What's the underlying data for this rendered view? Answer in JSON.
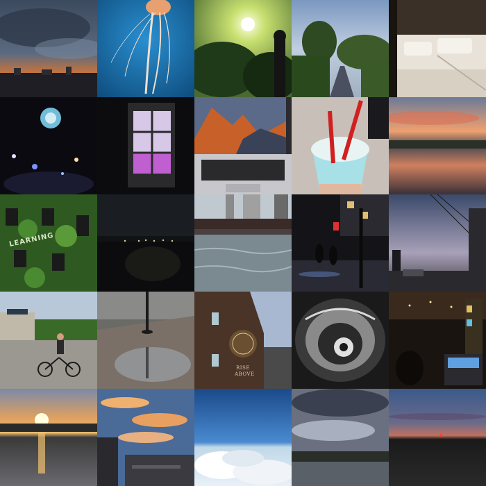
{
  "grid": {
    "columns": 5,
    "rows": 5
  },
  "tiles": [
    {
      "subject": "storm-sunset-city"
    },
    {
      "subject": "jellyfish"
    },
    {
      "subject": "sun-through-trees"
    },
    {
      "subject": "tree-lined-path"
    },
    {
      "subject": "hotel-beds"
    },
    {
      "subject": "glowing-balloon-night"
    },
    {
      "subject": "lit-window-night"
    },
    {
      "subject": "laptop-mountain-wallpaper"
    },
    {
      "subject": "blue-slush-drink"
    },
    {
      "subject": "river-sunset"
    },
    {
      "subject": "ivy-covered-building"
    },
    {
      "subject": "night-city-skyline"
    },
    {
      "subject": "river-bridge-skyline"
    },
    {
      "subject": "rainy-night-street"
    },
    {
      "subject": "dusk-street-wires"
    },
    {
      "subject": "cyclist-plaza"
    },
    {
      "subject": "puddle-reflection"
    },
    {
      "subject": "building-mural"
    },
    {
      "subject": "bean-sculpture-reflection"
    },
    {
      "subject": "arcade-interior"
    },
    {
      "subject": "sunset-over-water"
    },
    {
      "subject": "sunset-clouds-buildings"
    },
    {
      "subject": "clouds-from-airplane"
    },
    {
      "subject": "overcast-sky-lake"
    },
    {
      "subject": "red-horizon-dusk"
    }
  ],
  "signs": {
    "ivy_building": "LEARNING",
    "mural_line1": "RISE",
    "mural_line2": "ABOVE"
  },
  "colors": {
    "storm_sky": "#3c4a5e",
    "sunset_orange": "#e0762d",
    "ocean_blue": "#1a6fa8",
    "foliage_green": "#3d6b2a",
    "night": "#0a0a10",
    "dusk_purple": "#6a6a8a"
  }
}
